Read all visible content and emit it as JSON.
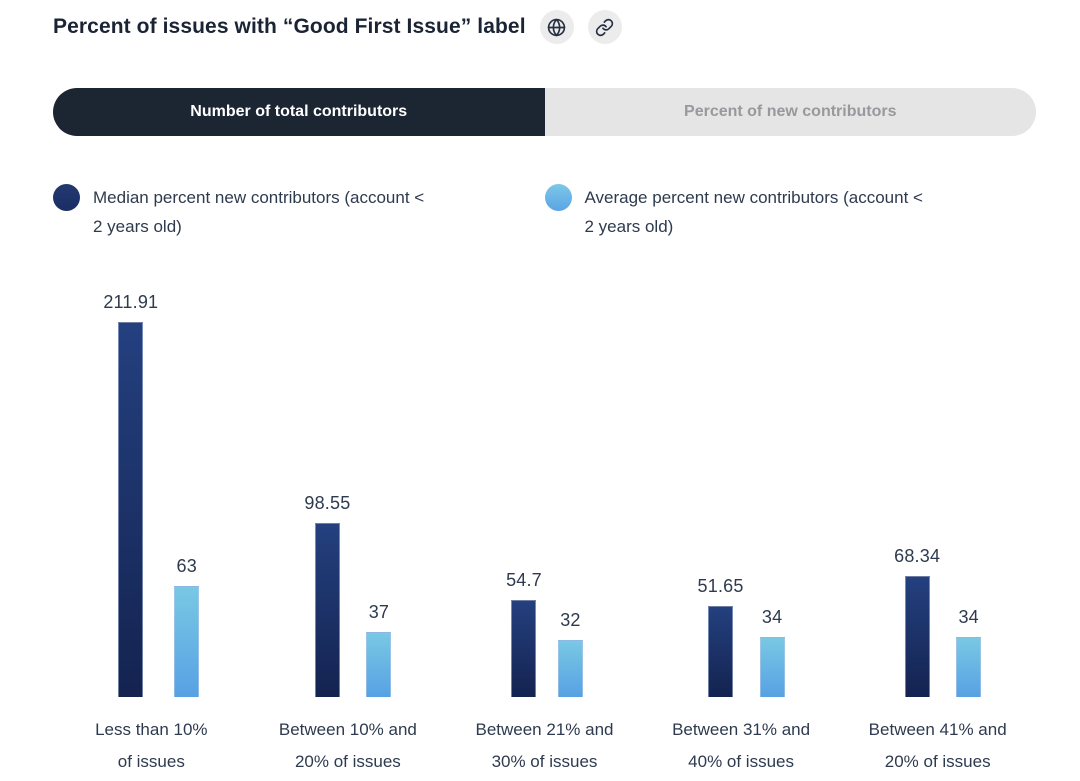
{
  "header": {
    "title": "Percent of issues with “Good First Issue” label",
    "buttons": [
      {
        "name": "globe-button",
        "icon": "globe-icon"
      },
      {
        "name": "link-button",
        "icon": "link-icon"
      }
    ]
  },
  "tabs": [
    {
      "label": "Number of total contributors",
      "active": true
    },
    {
      "label": "Percent of new contributors",
      "active": false
    }
  ],
  "legend": [
    {
      "series": "median",
      "label": "Median percent new contributors (account <\n2 years old)",
      "color": "#1d3272"
    },
    {
      "series": "average",
      "label": "Average percent new contributors (account <\n2 years old)",
      "color": "#6fc3e6"
    }
  ],
  "colors": {
    "median_bar_top": "#24407f",
    "median_bar_bottom": "#142350",
    "average_bar_top": "#79c8e4",
    "average_bar_bottom": "#57a1e4",
    "active_tab_bg": "#1c2532",
    "inactive_tab_bg": "#e5e5e5",
    "text": "#2e3a4e",
    "title_text": "#1b2434",
    "icon_button_bg": "#ececec"
  },
  "chart_data": {
    "type": "bar",
    "title": "Percent of issues with “Good First Issue” label",
    "categories": [
      "Less than 10%\nof issues",
      "Between 10% and\n20% of issues",
      "Between 21% and\n30% of issues",
      "Between 31% and\n40% of issues",
      "Between 41% and\n20% of issues"
    ],
    "series": [
      {
        "name": "Median percent new contributors (account < 2 years old)",
        "values": [
          211.91,
          98.55,
          54.7,
          51.65,
          68.34
        ]
      },
      {
        "name": "Average percent new contributors (account < 2 years old)",
        "values": [
          63,
          37,
          32,
          34,
          34
        ]
      }
    ],
    "xlabel": "",
    "ylabel": "",
    "ylim": [
      0,
      220
    ],
    "grid": false,
    "axes_shown": false,
    "value_labels_shown": true,
    "legend_position": "top"
  }
}
